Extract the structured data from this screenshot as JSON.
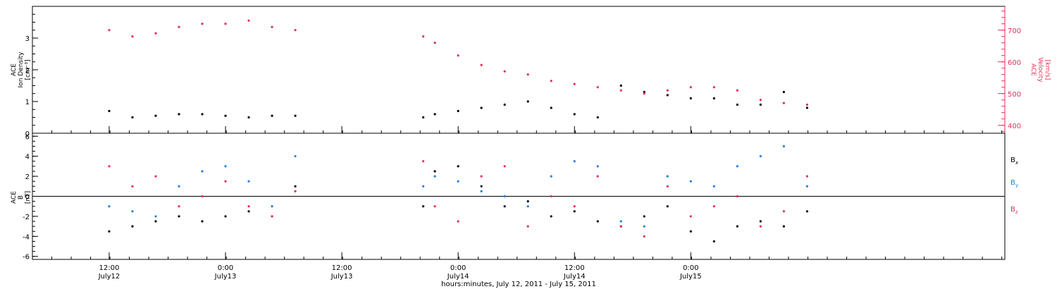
{
  "chart_data": [
    {
      "type": "scatter",
      "panel": "top",
      "ylabel": [
        "ACE",
        "Ion Density",
        "[cm⁻³]"
      ],
      "ylabel_right": [
        "ACE",
        "Velocity",
        "[km/s]"
      ],
      "ylim": [
        0,
        4
      ],
      "y_ticks": [
        0,
        1,
        2,
        3
      ],
      "ylim_right": [
        375,
        775
      ],
      "y_ticks_right": [
        400,
        500,
        600,
        700
      ],
      "colors": {
        "density": "#000000",
        "velocity": "#e0305a"
      },
      "series": [
        {
          "name": "Ion Density",
          "axis": "left",
          "color": "#000000",
          "x": [
            0.0,
            0.1,
            0.2,
            0.3,
            0.4,
            0.5,
            0.6,
            0.7,
            0.8,
            1.35,
            1.4,
            1.5,
            1.6,
            1.7,
            1.8,
            1.9,
            2.0,
            2.1,
            2.2,
            2.3,
            2.4,
            2.5,
            2.6,
            2.7,
            2.8,
            2.9,
            3.0
          ],
          "y": [
            0.7,
            0.5,
            0.55,
            0.6,
            0.6,
            0.55,
            0.5,
            0.55,
            0.55,
            0.5,
            0.6,
            0.7,
            0.8,
            0.9,
            1.0,
            0.8,
            0.6,
            0.5,
            1.5,
            1.3,
            1.2,
            1.1,
            1.1,
            0.9,
            0.9,
            1.3,
            0.8
          ]
        },
        {
          "name": "Velocity",
          "axis": "right",
          "color": "#e0305a",
          "x": [
            0.0,
            0.1,
            0.2,
            0.3,
            0.4,
            0.5,
            0.6,
            0.7,
            0.8,
            1.35,
            1.4,
            1.5,
            1.6,
            1.7,
            1.8,
            1.9,
            2.0,
            2.1,
            2.2,
            2.3,
            2.4,
            2.5,
            2.6,
            2.7,
            2.8,
            2.9,
            3.0
          ],
          "y": [
            700,
            680,
            690,
            710,
            720,
            720,
            730,
            710,
            700,
            680,
            660,
            620,
            590,
            570,
            560,
            540,
            530,
            520,
            510,
            500,
            510,
            520,
            520,
            510,
            480,
            470,
            465
          ]
        }
      ]
    },
    {
      "type": "scatter",
      "panel": "bottom",
      "ylabel": [
        "ACE",
        "B",
        "[nT]"
      ],
      "ylim": [
        -6.3,
        6.3
      ],
      "y_ticks": [
        -6,
        -4,
        -2,
        0,
        2,
        4,
        6
      ],
      "zero_line": true,
      "legend": [
        "Bx",
        "By",
        "Bz"
      ],
      "legend_placement": "right",
      "colors": {
        "Bx": "#000000",
        "By": "#1f7fdc",
        "Bz": "#e0305a"
      },
      "series": [
        {
          "name": "Bx",
          "color": "#000000",
          "x": [
            0.0,
            0.1,
            0.2,
            0.3,
            0.4,
            0.5,
            0.6,
            0.7,
            0.8,
            1.35,
            1.4,
            1.5,
            1.6,
            1.7,
            1.8,
            1.9,
            2.0,
            2.1,
            2.2,
            2.3,
            2.4,
            2.5,
            2.6,
            2.7,
            2.8,
            2.9,
            3.0
          ],
          "y": [
            -3.5,
            -3.0,
            -2.5,
            -2.0,
            -2.5,
            -2.0,
            -1.5,
            -2.0,
            1.0,
            -1.0,
            2.5,
            3.0,
            1.0,
            -1.0,
            -0.5,
            -2.0,
            -1.5,
            -2.5,
            -3.0,
            -2.0,
            -1.0,
            -3.5,
            -4.5,
            -3.0,
            -2.5,
            -3.0,
            -1.5
          ]
        },
        {
          "name": "By",
          "color": "#1f7fdc",
          "x": [
            0.0,
            0.1,
            0.2,
            0.3,
            0.4,
            0.5,
            0.6,
            0.7,
            0.8,
            1.35,
            1.4,
            1.5,
            1.6,
            1.7,
            1.8,
            1.9,
            2.0,
            2.1,
            2.2,
            2.3,
            2.4,
            2.5,
            2.6,
            2.7,
            2.8,
            2.9,
            3.0
          ],
          "y": [
            -1.0,
            -1.5,
            -2.0,
            1.0,
            2.5,
            3.0,
            1.5,
            -1.0,
            4.0,
            1.0,
            2.0,
            1.5,
            0.5,
            0.0,
            -1.0,
            2.0,
            3.5,
            3.0,
            -2.5,
            -3.0,
            2.0,
            1.5,
            1.0,
            3.0,
            4.0,
            5.0,
            1.0
          ]
        },
        {
          "name": "Bz",
          "color": "#e0305a",
          "x": [
            0.0,
            0.1,
            0.2,
            0.3,
            0.4,
            0.5,
            0.6,
            0.7,
            0.8,
            1.35,
            1.4,
            1.5,
            1.6,
            1.7,
            1.8,
            1.9,
            2.0,
            2.1,
            2.2,
            2.3,
            2.4,
            2.5,
            2.6,
            2.7,
            2.8,
            2.9,
            3.0
          ],
          "y": [
            3.0,
            1.0,
            2.0,
            -1.0,
            0.0,
            1.5,
            -1.0,
            -2.0,
            0.5,
            3.5,
            -1.0,
            -2.5,
            2.0,
            3.0,
            -3.0,
            0.0,
            -1.0,
            2.0,
            -3.0,
            -4.0,
            1.0,
            -2.0,
            -1.0,
            0.0,
            -3.0,
            -1.5,
            2.0
          ]
        }
      ]
    }
  ],
  "x_axis": {
    "xlim": [
      -0.33,
      3.85
    ],
    "ticks": [
      {
        "x": 0.0,
        "time": "12:00",
        "date": "July12"
      },
      {
        "x": 0.5,
        "time": "0:00",
        "date": "July13"
      },
      {
        "x": 1.0,
        "time": "12:00",
        "date": "July13"
      },
      {
        "x": 1.5,
        "time": "0:00",
        "date": "July14"
      },
      {
        "x": 2.0,
        "time": "12:00",
        "date": "July14"
      },
      {
        "x": 2.5,
        "time": "0:00",
        "date": "July15"
      }
    ],
    "label": "hours:minutes, July 12, 2011 - July 15, 2011"
  },
  "legend_labels": {
    "Bx": "B",
    "Bx_sub": "x",
    "By": "B",
    "By_sub": "y",
    "Bz": "B",
    "Bz_sub": "z"
  }
}
